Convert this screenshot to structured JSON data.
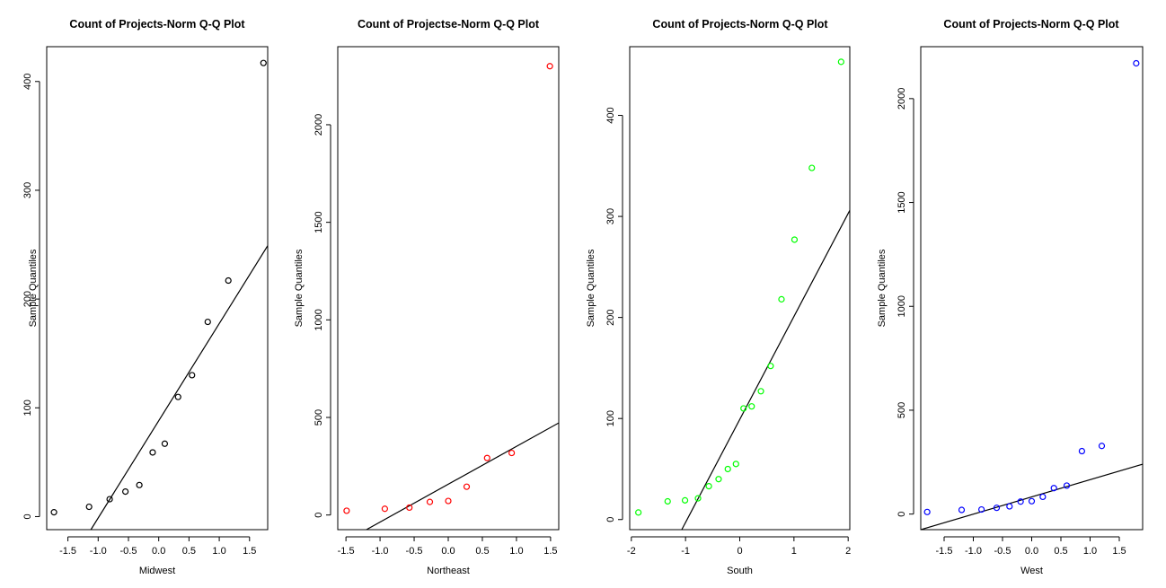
{
  "chart_data": [
    {
      "type": "scatter",
      "title": "Count of Projects-Norm Q-Q Plot",
      "xlabel": "Midwest",
      "ylabel": "Sample Quantiles",
      "color": "#000000",
      "xlim": [
        -1.85,
        1.8
      ],
      "ylim": [
        -12,
        432
      ],
      "xticks": [
        -1.5,
        -1.0,
        -0.5,
        0.0,
        0.5,
        1.0,
        1.5
      ],
      "xtick_labels": [
        "-1.5",
        "-1.0",
        "-0.5",
        "0.0",
        "0.5",
        "1.0",
        "1.5"
      ],
      "yticks": [
        0,
        100,
        200,
        300,
        400
      ],
      "ytick_labels": [
        "0",
        "100",
        "200",
        "300",
        "400"
      ],
      "points": [
        [
          -1.73,
          4
        ],
        [
          -1.15,
          9
        ],
        [
          -0.81,
          16
        ],
        [
          -0.55,
          23
        ],
        [
          -0.32,
          29
        ],
        [
          -0.1,
          59
        ],
        [
          0.1,
          67
        ],
        [
          0.32,
          110
        ],
        [
          0.55,
          130
        ],
        [
          0.81,
          179
        ],
        [
          1.15,
          217
        ],
        [
          1.73,
          417
        ]
      ],
      "qqline": [
        [
          -1.12,
          -12
        ],
        [
          1.8,
          249
        ]
      ]
    },
    {
      "type": "scatter",
      "title": "Count of Projectse-Norm Q-Q Plot",
      "xlabel": "Northeast",
      "ylabel": "Sample Quantiles",
      "color": "#ff0000",
      "xlim": [
        -1.62,
        1.62
      ],
      "ylim": [
        -75,
        2400
      ],
      "xticks": [
        -1.5,
        -1.0,
        -0.5,
        0.0,
        0.5,
        1.0,
        1.5
      ],
      "xtick_labels": [
        "-1.5",
        "-1.0",
        "-0.5",
        "0.0",
        "0.5",
        "1.0",
        "1.5"
      ],
      "yticks": [
        0,
        500,
        1000,
        1500,
        2000
      ],
      "ytick_labels": [
        "0",
        "500",
        "1000",
        "1500",
        "2000"
      ],
      "points": [
        [
          -1.49,
          22
        ],
        [
          -0.93,
          32
        ],
        [
          -0.57,
          38
        ],
        [
          -0.27,
          67
        ],
        [
          0.0,
          72
        ],
        [
          0.27,
          145
        ],
        [
          0.57,
          292
        ],
        [
          0.93,
          318
        ],
        [
          1.49,
          2300
        ]
      ],
      "qqline": [
        [
          -1.2,
          -75
        ],
        [
          1.62,
          472
        ]
      ]
    },
    {
      "type": "scatter",
      "title": "Count of Projects-Norm Q-Q Plot",
      "xlabel": "South",
      "ylabel": "Sample Quantiles",
      "color": "#00ff00",
      "xlim": [
        -2.03,
        2.03
      ],
      "ylim": [
        -10,
        468
      ],
      "xticks": [
        -2,
        -1,
        0,
        1,
        2
      ],
      "xtick_labels": [
        "-2",
        "-1",
        "0",
        "1",
        "2"
      ],
      "yticks": [
        0,
        100,
        200,
        300,
        400
      ],
      "ytick_labels": [
        "0",
        "100",
        "200",
        "300",
        "400"
      ],
      "points": [
        [
          -1.87,
          7
        ],
        [
          -1.33,
          18
        ],
        [
          -1.01,
          19
        ],
        [
          -0.77,
          21
        ],
        [
          -0.57,
          33
        ],
        [
          -0.39,
          40
        ],
        [
          -0.22,
          50
        ],
        [
          -0.07,
          55
        ],
        [
          0.07,
          110
        ],
        [
          0.22,
          112
        ],
        [
          0.39,
          127
        ],
        [
          0.57,
          152
        ],
        [
          0.77,
          218
        ],
        [
          1.01,
          277
        ],
        [
          1.33,
          348
        ],
        [
          1.87,
          453
        ]
      ],
      "qqline": [
        [
          -1.07,
          -10
        ],
        [
          2.03,
          306
        ]
      ]
    },
    {
      "type": "scatter",
      "title": "Count of Projects-Norm Q-Q Plot",
      "xlabel": "West",
      "ylabel": "Sample Quantiles",
      "color": "#0000ff",
      "xlim": [
        -1.9,
        1.9
      ],
      "ylim": [
        -75,
        2250
      ],
      "xticks": [
        -1.5,
        -1.0,
        -0.5,
        0.0,
        0.5,
        1.0,
        1.5
      ],
      "xtick_labels": [
        "-1.5",
        "-1.0",
        "-0.5",
        "0.0",
        "0.5",
        "1.0",
        "1.5"
      ],
      "yticks": [
        0,
        500,
        1000,
        1500,
        2000
      ],
      "ytick_labels": [
        "0",
        "500",
        "1000",
        "1500",
        "2000"
      ],
      "points": [
        [
          -1.79,
          10
        ],
        [
          -1.2,
          20
        ],
        [
          -0.86,
          22
        ],
        [
          -0.6,
          30
        ],
        [
          -0.38,
          37
        ],
        [
          -0.19,
          60
        ],
        [
          0.0,
          62
        ],
        [
          0.19,
          83
        ],
        [
          0.38,
          125
        ],
        [
          0.6,
          137
        ],
        [
          0.86,
          303
        ],
        [
          1.2,
          328
        ],
        [
          1.79,
          2170
        ]
      ],
      "qqline": [
        [
          -1.9,
          -75
        ],
        [
          1.9,
          240
        ]
      ]
    }
  ]
}
